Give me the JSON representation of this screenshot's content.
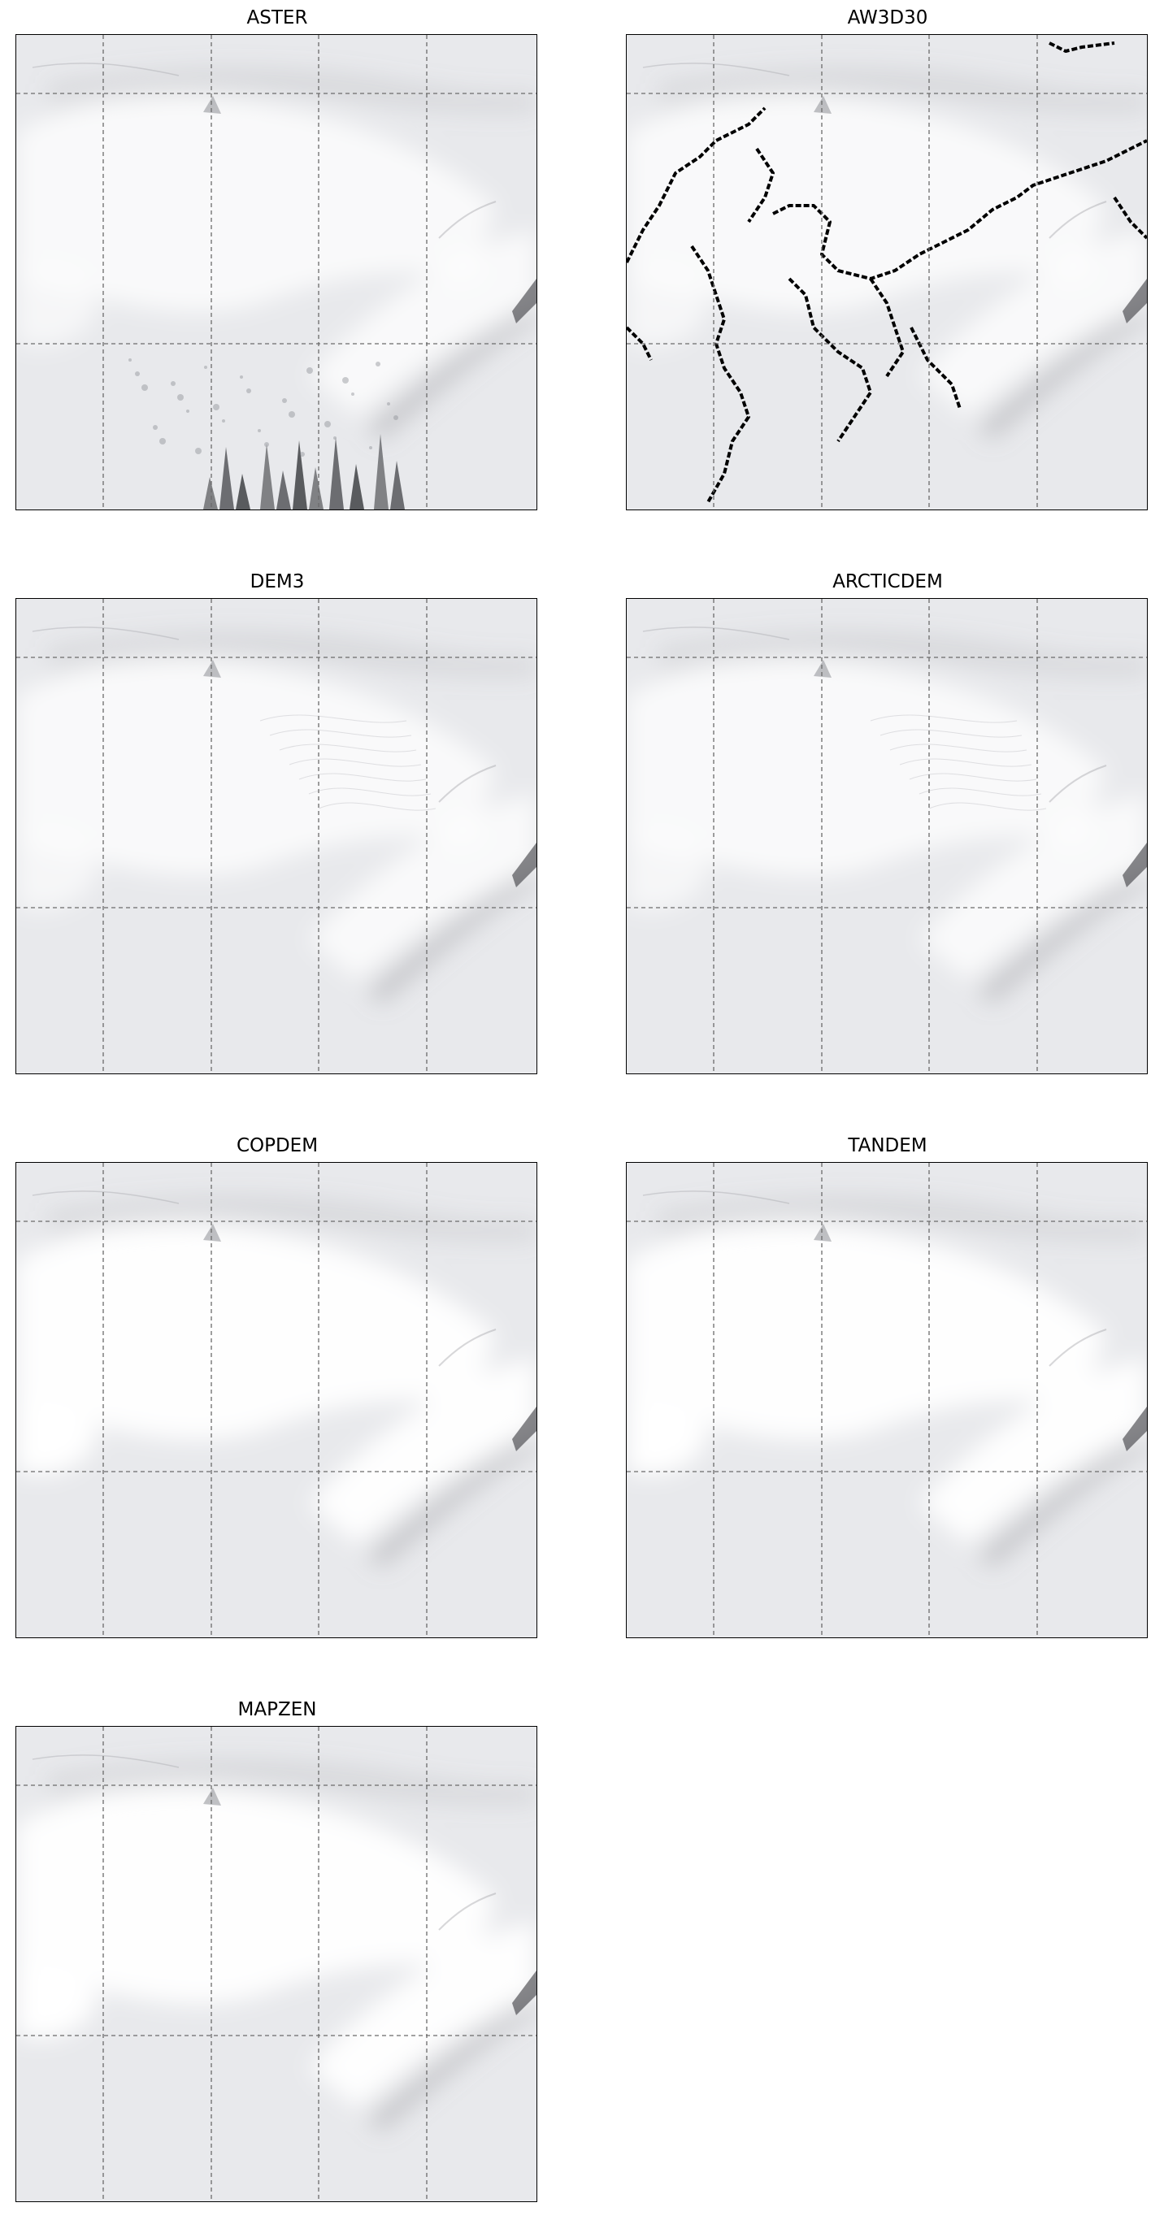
{
  "colors": {
    "terrain_base": "#e8e9ec",
    "terrain_light": "#ffffff",
    "terrain_shadow": "#8e9096",
    "gridline": "#6b6b6b",
    "frame": "#000000",
    "artifact": "#000000"
  },
  "panels": [
    {
      "id": "aster",
      "title": "ASTER",
      "style": "rough"
    },
    {
      "id": "aw3d30",
      "title": "AW3D30",
      "style": "voids"
    },
    {
      "id": "dem3",
      "title": "DEM3",
      "style": "smooth"
    },
    {
      "id": "arcticdem",
      "title": "ARCTICDEM",
      "style": "smooth"
    },
    {
      "id": "copdem",
      "title": "COPDEM",
      "style": "bright"
    },
    {
      "id": "tandem",
      "title": "TANDEM",
      "style": "bright"
    },
    {
      "id": "mapzen",
      "title": "MAPZEN",
      "style": "bright"
    }
  ]
}
